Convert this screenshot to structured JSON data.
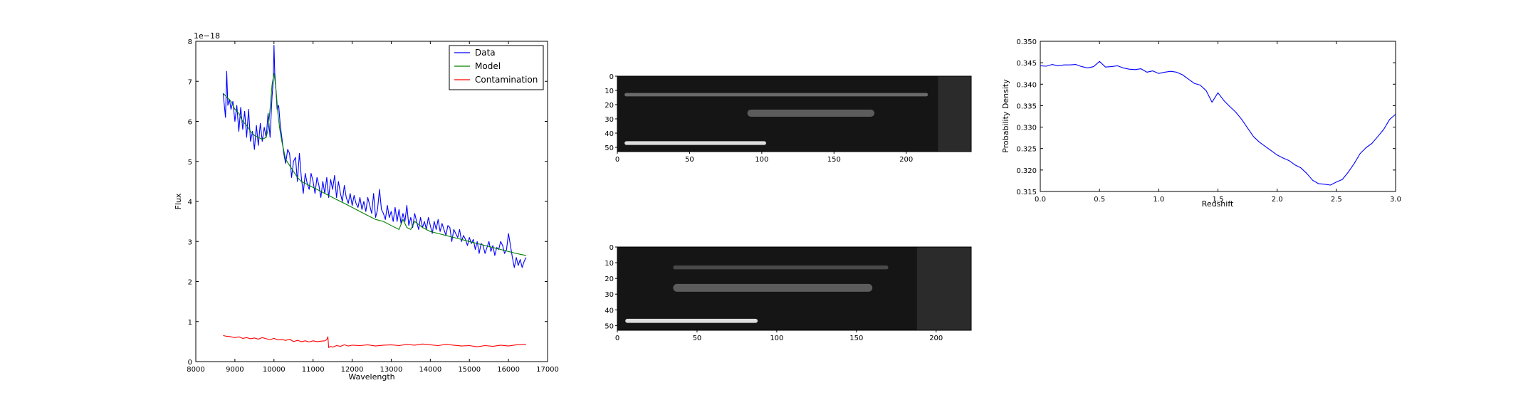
{
  "chart_data": [
    {
      "type": "line",
      "offset_text": "1e−18",
      "xlabel": "Wavelength",
      "ylabel": "Flux",
      "xlim": [
        8000,
        17000
      ],
      "ylim": [
        0,
        8
      ],
      "y_scale": 1e-18,
      "x_ticks": [
        8000,
        9000,
        10000,
        11000,
        12000,
        13000,
        14000,
        15000,
        16000,
        17000
      ],
      "y_ticks": [
        0,
        1,
        2,
        3,
        4,
        5,
        6,
        7,
        8
      ],
      "legend_position": "top-right",
      "series": [
        {
          "name": "Data",
          "color": "#0000ff",
          "x": [
            8700,
            8760,
            8790,
            8820,
            8860,
            8900,
            8950,
            9000,
            9050,
            9100,
            9150,
            9200,
            9250,
            9300,
            9350,
            9400,
            9450,
            9500,
            9550,
            9600,
            9650,
            9700,
            9750,
            9800,
            9850,
            9900,
            9950,
            9980,
            10000,
            10020,
            10050,
            10080,
            10120,
            10160,
            10200,
            10250,
            10300,
            10350,
            10400,
            10450,
            10500,
            10550,
            10600,
            10650,
            10700,
            10750,
            10800,
            10850,
            10900,
            10950,
            11000,
            11050,
            11100,
            11150,
            11200,
            11250,
            11300,
            11350,
            11400,
            11450,
            11500,
            11550,
            11600,
            11650,
            11700,
            11750,
            11800,
            11850,
            11900,
            11950,
            12000,
            12050,
            12100,
            12150,
            12200,
            12250,
            12300,
            12350,
            12400,
            12450,
            12500,
            12550,
            12600,
            12650,
            12700,
            12750,
            12800,
            12850,
            12900,
            12950,
            13000,
            13050,
            13100,
            13150,
            13200,
            13250,
            13300,
            13350,
            13400,
            13450,
            13500,
            13550,
            13600,
            13650,
            13700,
            13750,
            13800,
            13850,
            13900,
            13950,
            14000,
            14050,
            14100,
            14150,
            14200,
            14250,
            14300,
            14350,
            14400,
            14450,
            14500,
            14550,
            14600,
            14650,
            14700,
            14750,
            14800,
            14850,
            14900,
            14950,
            15000,
            15050,
            15100,
            15150,
            15200,
            15250,
            15300,
            15350,
            15400,
            15450,
            15500,
            15550,
            15600,
            15650,
            15700,
            15750,
            15800,
            15850,
            15900,
            15950,
            16000,
            16050,
            16100,
            16150,
            16200,
            16250,
            16300,
            16350,
            16400,
            16450
          ],
          "y": [
            6.7,
            6.1,
            7.25,
            6.4,
            6.55,
            6.3,
            6.5,
            6.0,
            6.4,
            5.75,
            6.35,
            5.8,
            6.25,
            5.6,
            6.3,
            5.5,
            5.75,
            5.3,
            5.9,
            5.4,
            5.95,
            5.5,
            5.85,
            5.6,
            6.2,
            5.6,
            6.6,
            7.0,
            7.9,
            7.2,
            6.8,
            6.3,
            6.4,
            5.9,
            5.6,
            5.2,
            4.95,
            5.3,
            5.2,
            4.6,
            5.0,
            5.1,
            4.5,
            5.2,
            4.6,
            4.2,
            4.7,
            4.45,
            4.3,
            4.7,
            4.5,
            4.2,
            4.6,
            4.4,
            4.1,
            4.5,
            4.2,
            4.6,
            4.1,
            4.55,
            4.3,
            4.65,
            4.1,
            4.5,
            4.2,
            4.0,
            4.4,
            4.1,
            3.95,
            4.2,
            3.9,
            4.15,
            3.95,
            3.85,
            4.1,
            3.8,
            4.0,
            3.75,
            4.1,
            3.9,
            3.7,
            4.2,
            3.6,
            3.8,
            4.3,
            3.8,
            3.7,
            3.55,
            3.9,
            3.6,
            3.75,
            3.5,
            3.85,
            3.5,
            3.8,
            3.45,
            3.7,
            3.5,
            3.9,
            3.4,
            3.6,
            3.35,
            3.7,
            3.5,
            3.3,
            3.6,
            3.35,
            3.5,
            3.3,
            3.6,
            3.4,
            3.2,
            3.5,
            3.3,
            3.55,
            3.25,
            3.45,
            3.3,
            3.15,
            3.4,
            3.35,
            3.0,
            3.3,
            3.2,
            3.1,
            3.3,
            3.0,
            3.15,
            3.05,
            2.9,
            3.1,
            2.95,
            3.05,
            2.8,
            3.0,
            2.7,
            2.95,
            2.9,
            2.7,
            2.85,
            3.0,
            2.75,
            2.9,
            2.65,
            2.85,
            2.8,
            3.0,
            2.9,
            2.7,
            2.8,
            3.2,
            2.9,
            2.6,
            2.35,
            2.6,
            2.4,
            2.55,
            2.35,
            2.5,
            2.6
          ]
        },
        {
          "name": "Model",
          "color": "#008000",
          "x": [
            8700,
            8800,
            8900,
            9000,
            9100,
            9200,
            9300,
            9400,
            9500,
            9600,
            9700,
            9800,
            9850,
            9900,
            9950,
            10000,
            10030,
            10060,
            10100,
            10150,
            10200,
            10300,
            10400,
            10500,
            10600,
            10700,
            10800,
            11000,
            11200,
            11400,
            11600,
            11800,
            12000,
            12200,
            12400,
            12600,
            12800,
            13000,
            13200,
            13300,
            13400,
            13500,
            13600,
            13800,
            14000,
            14200,
            14400,
            14600,
            14800,
            15000,
            15200,
            15400,
            15600,
            15800,
            16000,
            16200,
            16450
          ],
          "y": [
            6.7,
            6.6,
            6.5,
            6.3,
            6.2,
            6.0,
            5.9,
            5.75,
            5.65,
            5.6,
            5.55,
            5.6,
            5.8,
            6.3,
            6.9,
            7.2,
            7.0,
            6.7,
            6.2,
            5.8,
            5.5,
            5.05,
            4.9,
            4.75,
            4.6,
            4.5,
            4.45,
            4.35,
            4.25,
            4.15,
            4.05,
            3.95,
            3.85,
            3.75,
            3.65,
            3.55,
            3.5,
            3.4,
            3.3,
            3.55,
            3.35,
            3.3,
            3.5,
            3.35,
            3.25,
            3.2,
            3.15,
            3.1,
            3.05,
            3.0,
            2.95,
            2.9,
            2.85,
            2.8,
            2.75,
            2.7,
            2.65
          ]
        },
        {
          "name": "Contamination",
          "color": "#ff0000",
          "x": [
            8700,
            8800,
            8900,
            9000,
            9100,
            9200,
            9300,
            9400,
            9500,
            9600,
            9700,
            9800,
            9900,
            10000,
            10100,
            10200,
            10300,
            10400,
            10500,
            10600,
            10700,
            10800,
            10900,
            11000,
            11100,
            11200,
            11300,
            11350,
            11380,
            11400,
            11450,
            11500,
            11600,
            11700,
            11800,
            11900,
            12000,
            12200,
            12400,
            12600,
            12800,
            13000,
            13200,
            13400,
            13600,
            13800,
            14000,
            14200,
            14400,
            14600,
            14800,
            15000,
            15200,
            15400,
            15600,
            15800,
            16000,
            16200,
            16450
          ],
          "y": [
            0.65,
            0.63,
            0.62,
            0.6,
            0.62,
            0.58,
            0.6,
            0.57,
            0.59,
            0.56,
            0.6,
            0.57,
            0.55,
            0.58,
            0.54,
            0.55,
            0.53,
            0.56,
            0.5,
            0.53,
            0.5,
            0.52,
            0.49,
            0.52,
            0.5,
            0.51,
            0.52,
            0.55,
            0.62,
            0.35,
            0.38,
            0.36,
            0.4,
            0.38,
            0.42,
            0.39,
            0.41,
            0.4,
            0.42,
            0.39,
            0.41,
            0.42,
            0.4,
            0.43,
            0.41,
            0.44,
            0.42,
            0.4,
            0.43,
            0.41,
            0.39,
            0.4,
            0.37,
            0.4,
            0.38,
            0.41,
            0.39,
            0.42,
            0.43
          ]
        }
      ]
    },
    {
      "type": "heatmap",
      "colormap": "gray",
      "xlim": [
        0,
        245
      ],
      "ylim": [
        53,
        0
      ],
      "x_ticks": [
        0,
        50,
        100,
        150,
        200
      ],
      "y_ticks": [
        0,
        10,
        20,
        30,
        40,
        50
      ],
      "traces": [
        {
          "row": 13,
          "x_start": 5,
          "x_end": 215,
          "intensity": 0.35,
          "width": 1.2
        },
        {
          "row": 26,
          "x_start": 90,
          "x_end": 178,
          "intensity": 0.28,
          "width": 2.5
        },
        {
          "row": 47,
          "x_start": 5,
          "x_end": 103,
          "intensity": 0.95,
          "width": 1.3
        }
      ],
      "dark_region_from_x": 222
    },
    {
      "type": "heatmap",
      "colormap": "gray",
      "xlim": [
        0,
        222
      ],
      "ylim": [
        53,
        0
      ],
      "x_ticks": [
        0,
        50,
        100,
        150,
        200
      ],
      "y_ticks": [
        0,
        10,
        20,
        30,
        40,
        50
      ],
      "traces": [
        {
          "row": 13,
          "x_start": 35,
          "x_end": 170,
          "intensity": 0.18,
          "width": 1.2
        },
        {
          "row": 26,
          "x_start": 35,
          "x_end": 160,
          "intensity": 0.28,
          "width": 2.5
        },
        {
          "row": 47,
          "x_start": 5,
          "x_end": 88,
          "intensity": 0.95,
          "width": 1.3
        }
      ],
      "dark_region_from_x": 188
    },
    {
      "type": "line",
      "xlabel": "Redshift",
      "ylabel": "Probability Density",
      "xlim": [
        0.0,
        3.0
      ],
      "ylim": [
        0.315,
        0.35
      ],
      "x_ticks": [
        0.0,
        0.5,
        1.0,
        1.5,
        2.0,
        2.5,
        3.0
      ],
      "y_ticks": [
        0.315,
        0.32,
        0.325,
        0.33,
        0.335,
        0.34,
        0.345,
        0.35
      ],
      "series": [
        {
          "color": "#0000ff",
          "x": [
            0.0,
            0.05,
            0.1,
            0.15,
            0.2,
            0.25,
            0.3,
            0.35,
            0.4,
            0.45,
            0.5,
            0.55,
            0.6,
            0.65,
            0.7,
            0.75,
            0.8,
            0.85,
            0.9,
            0.95,
            1.0,
            1.05,
            1.1,
            1.15,
            1.2,
            1.25,
            1.3,
            1.35,
            1.4,
            1.45,
            1.5,
            1.55,
            1.6,
            1.65,
            1.7,
            1.75,
            1.8,
            1.85,
            1.9,
            1.95,
            2.0,
            2.05,
            2.1,
            2.15,
            2.2,
            2.25,
            2.3,
            2.35,
            2.4,
            2.45,
            2.5,
            2.55,
            2.6,
            2.65,
            2.7,
            2.75,
            2.8,
            2.85,
            2.9,
            2.95,
            3.0
          ],
          "y": [
            0.3443,
            0.3442,
            0.3446,
            0.3443,
            0.3445,
            0.3445,
            0.3446,
            0.3441,
            0.3438,
            0.3441,
            0.3453,
            0.344,
            0.3441,
            0.3443,
            0.3438,
            0.3435,
            0.3434,
            0.3436,
            0.3428,
            0.3431,
            0.3425,
            0.3428,
            0.343,
            0.3428,
            0.3422,
            0.3412,
            0.3402,
            0.3398,
            0.3385,
            0.3358,
            0.338,
            0.3362,
            0.3348,
            0.3335,
            0.3318,
            0.3298,
            0.3278,
            0.3265,
            0.3255,
            0.3245,
            0.3235,
            0.3228,
            0.3222,
            0.3212,
            0.3205,
            0.3192,
            0.3176,
            0.3168,
            0.3167,
            0.3165,
            0.3172,
            0.3178,
            0.3195,
            0.3215,
            0.3238,
            0.3252,
            0.3262,
            0.3278,
            0.3295,
            0.3318,
            0.333
          ]
        }
      ]
    }
  ]
}
